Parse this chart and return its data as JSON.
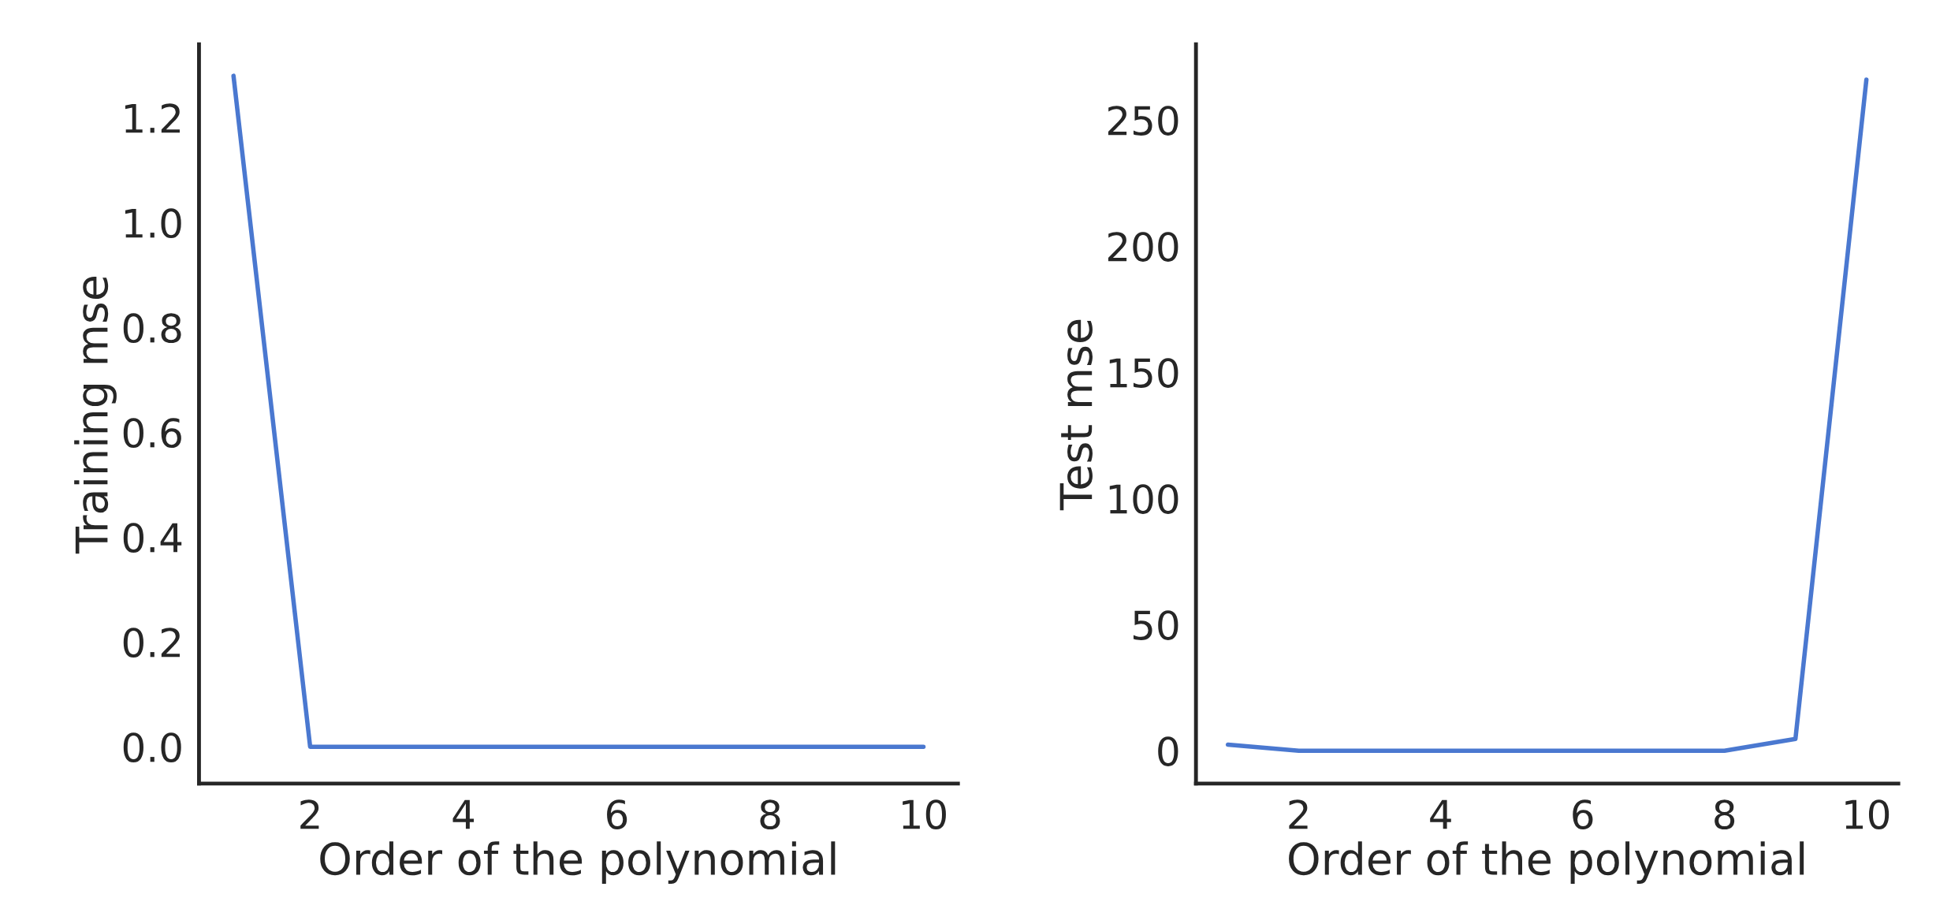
{
  "chart_data": [
    {
      "type": "line",
      "xlabel": "Order of the polynomial",
      "ylabel": "Training mse",
      "x": [
        1,
        2,
        3,
        4,
        5,
        6,
        7,
        8,
        9,
        10
      ],
      "series": [
        {
          "color": "#4a78d0",
          "values": [
            1.28,
            0.0,
            0.0,
            0.0,
            0.0,
            0.0,
            0.0,
            0.0,
            0.0,
            0.0
          ]
        }
      ],
      "xlim": [
        0.55,
        10.45
      ],
      "ylim": [
        -0.07,
        1.34
      ],
      "xticks": [
        2,
        4,
        6,
        8,
        10
      ],
      "yticks": [
        {
          "value": 0,
          "label": "0.0"
        },
        0.2,
        0.4,
        0.6,
        0.8,
        {
          "value": 1,
          "label": "1.0"
        },
        1.2
      ],
      "grid": false,
      "legend": false
    },
    {
      "type": "line",
      "xlabel": "Order of the polynomial",
      "ylabel": "Test mse",
      "x": [
        1,
        2,
        3,
        4,
        5,
        6,
        7,
        8,
        9,
        10
      ],
      "series": [
        {
          "color": "#4a78d0",
          "values": [
            2.4,
            0.0,
            0.0,
            0.0,
            0.0,
            0.0,
            0.0,
            0.0,
            4.7,
            266
          ]
        }
      ],
      "xlim": [
        0.55,
        10.45
      ],
      "ylim": [
        -13,
        280
      ],
      "xticks": [
        2,
        4,
        6,
        8,
        10
      ],
      "yticks": [
        0,
        50,
        100,
        150,
        200,
        250
      ],
      "grid": false,
      "legend": false
    }
  ]
}
